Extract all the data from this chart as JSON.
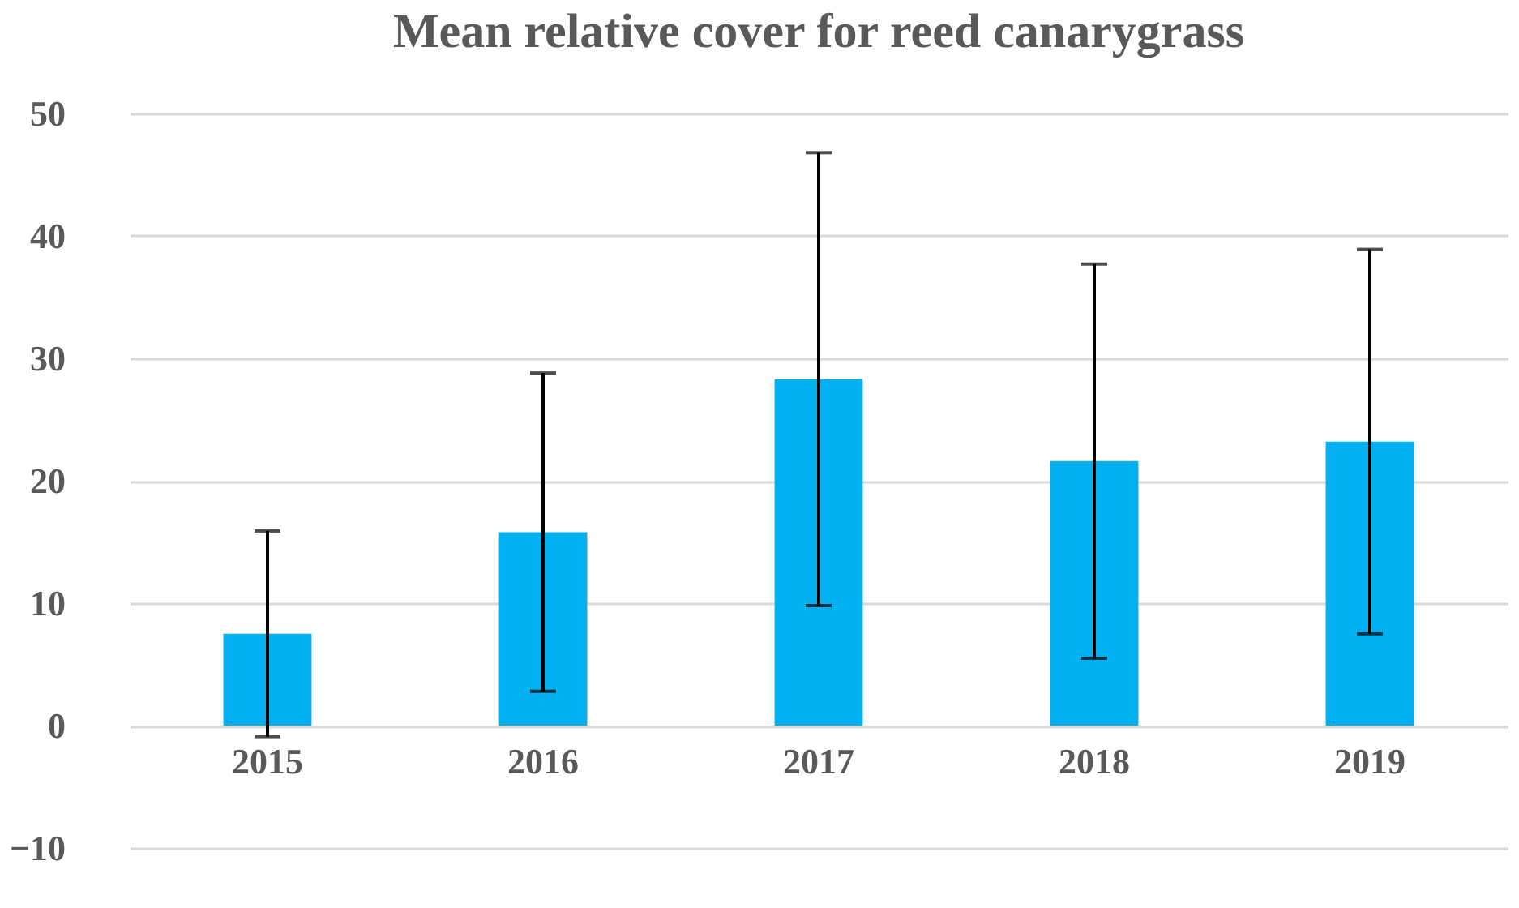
{
  "chart_data": {
    "type": "bar",
    "title": "Mean relative cover for reed canarygrass",
    "categories": [
      "2015",
      "2016",
      "2017",
      "2018",
      "2019"
    ],
    "values": [
      7.5,
      15.8,
      28.3,
      21.6,
      23.2
    ],
    "errors": [
      8.4,
      13.0,
      18.5,
      16.1,
      15.7
    ],
    "color": "#00b0f0",
    "ylim": [
      -10,
      50
    ],
    "yticks": [
      -10,
      0,
      10,
      20,
      30,
      40,
      50
    ],
    "grid": "y"
  }
}
